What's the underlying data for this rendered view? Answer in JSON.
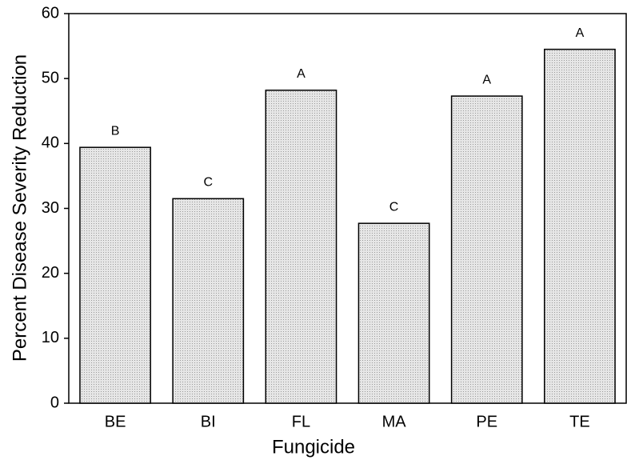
{
  "chart_data": {
    "type": "bar",
    "x_label": "Fungicide",
    "y_label": "Percent Disease Severity Reduction",
    "categories": [
      "BE",
      "BI",
      "FL",
      "MA",
      "PE",
      "TE"
    ],
    "values": [
      39.4,
      31.5,
      48.2,
      27.7,
      47.3,
      54.5
    ],
    "annotations": [
      "B",
      "C",
      "A",
      "C",
      "A",
      "A"
    ],
    "color": "#d9d9d9",
    "ylim": [
      0,
      60
    ],
    "yticks": [
      0,
      10,
      20,
      30,
      40,
      50,
      60
    ],
    "grid": false
  }
}
